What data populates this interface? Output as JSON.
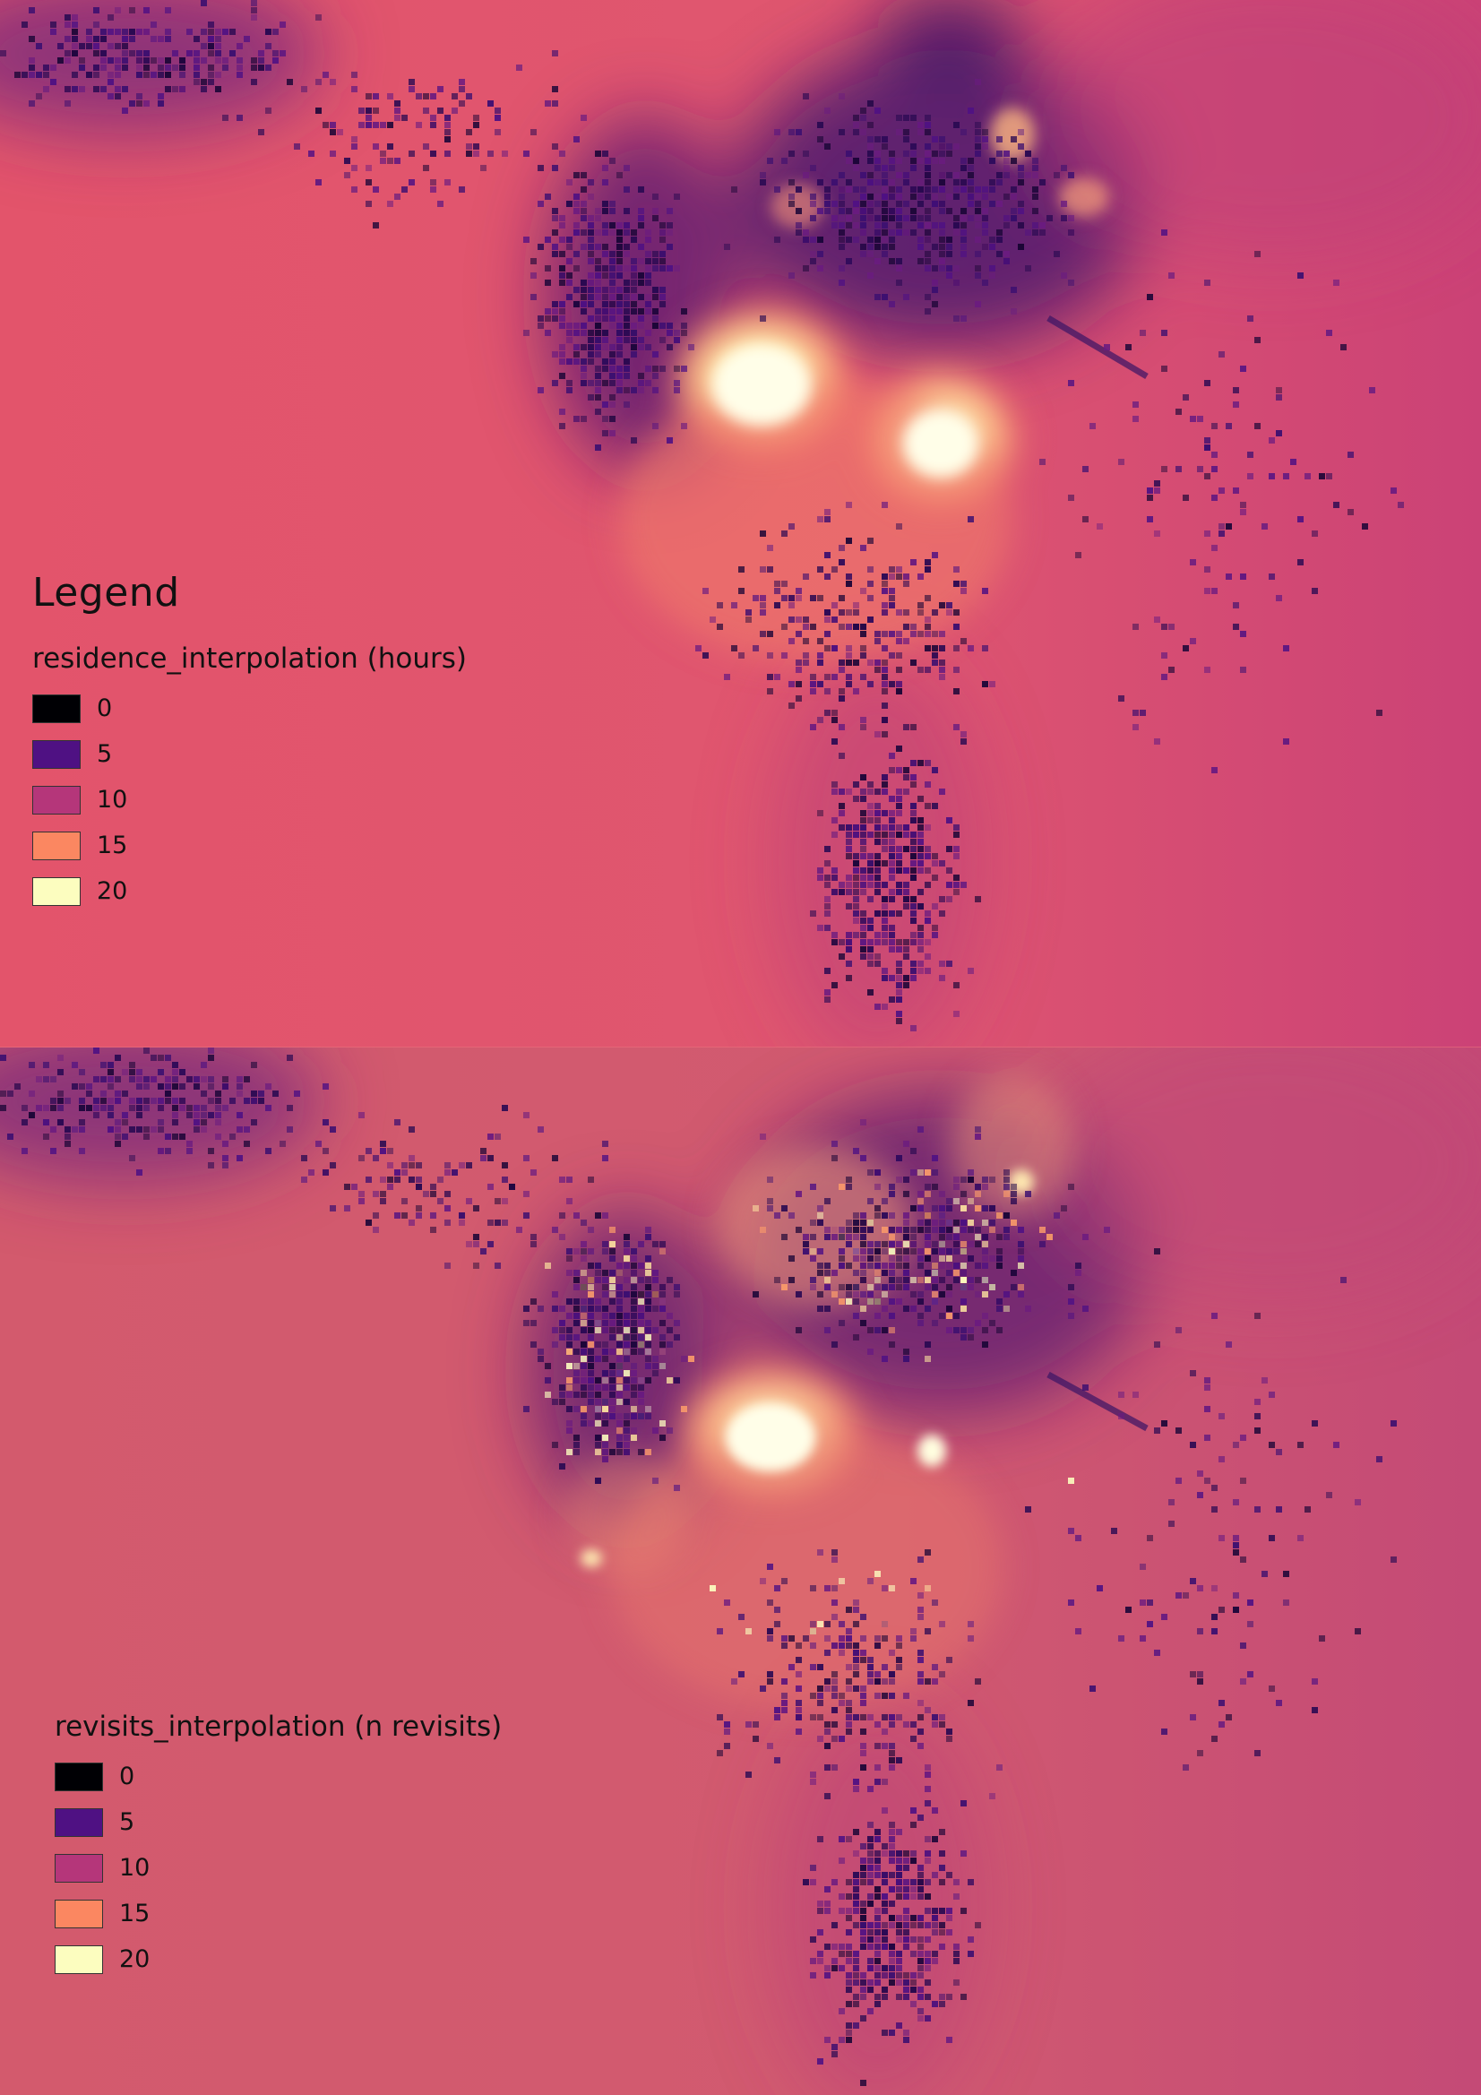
{
  "legend": {
    "title": "Legend"
  },
  "panels": [
    {
      "layer_name": "residence_interpolation (hours)",
      "classes": [
        {
          "value": "0",
          "color": "#000004"
        },
        {
          "value": "5",
          "color": "#4f1183"
        },
        {
          "value": "10",
          "color": "#b5367a"
        },
        {
          "value": "15",
          "color": "#fb8761"
        },
        {
          "value": "20",
          "color": "#fcfdbf"
        }
      ],
      "background_color": "#e4556c"
    },
    {
      "layer_name": "revisits_interpolation (n revisits)",
      "classes": [
        {
          "value": "0",
          "color": "#000004"
        },
        {
          "value": "5",
          "color": "#4f1183"
        },
        {
          "value": "10",
          "color": "#b5367a"
        },
        {
          "value": "15",
          "color": "#fb8761"
        },
        {
          "value": "20",
          "color": "#fcfdbf"
        }
      ],
      "background_color": "#d65a6d"
    }
  ]
}
